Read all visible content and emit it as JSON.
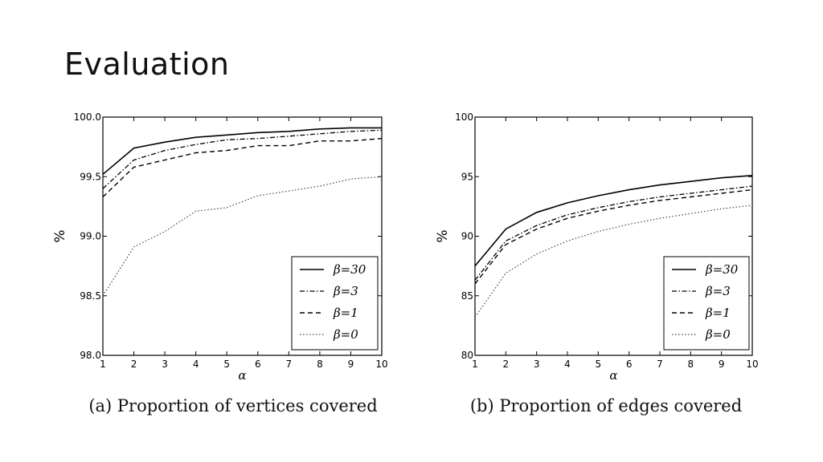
{
  "slide": {
    "title": "Evaluation"
  },
  "chart_data": [
    {
      "type": "line",
      "caption": "(a) Proportion of vertices covered",
      "xlabel": "α",
      "ylabel": "%",
      "x": [
        1,
        2,
        3,
        4,
        5,
        6,
        7,
        8,
        9,
        10
      ],
      "xlim": [
        1,
        10
      ],
      "ylim": [
        98.0,
        100.0
      ],
      "yticks": [
        "98.0",
        "98.5",
        "99.0",
        "99.5",
        "100.0"
      ],
      "yticks_values": [
        98.0,
        98.5,
        99.0,
        99.5,
        100.0
      ],
      "xticks": [
        "1",
        "2",
        "3",
        "4",
        "5",
        "6",
        "7",
        "8",
        "9",
        "10"
      ],
      "legend_position": "lower-right",
      "series": [
        {
          "name": "β=30",
          "style": "solid",
          "values": [
            99.52,
            99.74,
            99.79,
            99.83,
            99.85,
            99.87,
            99.88,
            99.9,
            99.91,
            99.91
          ]
        },
        {
          "name": "β=3",
          "style": "dashdot",
          "values": [
            99.4,
            99.64,
            99.72,
            99.77,
            99.81,
            99.82,
            99.84,
            99.86,
            99.88,
            99.89
          ]
        },
        {
          "name": "β=1",
          "style": "dashed",
          "values": [
            99.33,
            99.58,
            99.64,
            99.7,
            99.72,
            99.76,
            99.76,
            99.8,
            99.8,
            99.82
          ]
        },
        {
          "name": "β=0",
          "style": "dotted",
          "values": [
            98.5,
            98.91,
            99.04,
            99.21,
            99.24,
            99.34,
            99.38,
            99.42,
            99.48,
            99.5
          ]
        }
      ]
    },
    {
      "type": "line",
      "caption": "(b) Proportion of edges covered",
      "xlabel": "α",
      "ylabel": "%",
      "x": [
        1,
        2,
        3,
        4,
        5,
        6,
        7,
        8,
        9,
        10
      ],
      "xlim": [
        1,
        10
      ],
      "ylim": [
        80,
        100
      ],
      "yticks": [
        "80",
        "85",
        "90",
        "95",
        "100"
      ],
      "yticks_values": [
        80,
        85,
        90,
        95,
        100
      ],
      "xticks": [
        "1",
        "2",
        "3",
        "4",
        "5",
        "6",
        "7",
        "8",
        "9",
        "10"
      ],
      "legend_position": "lower-right",
      "series": [
        {
          "name": "β=30",
          "style": "solid",
          "values": [
            87.5,
            90.6,
            92.0,
            92.8,
            93.4,
            93.9,
            94.3,
            94.6,
            94.9,
            95.1
          ]
        },
        {
          "name": "β=3",
          "style": "dashdot",
          "values": [
            86.3,
            89.6,
            90.9,
            91.8,
            92.4,
            92.9,
            93.3,
            93.6,
            93.9,
            94.2
          ]
        },
        {
          "name": "β=1",
          "style": "dashed",
          "values": [
            86.0,
            89.3,
            90.6,
            91.5,
            92.1,
            92.6,
            93.0,
            93.3,
            93.6,
            93.9
          ]
        },
        {
          "name": "β=0",
          "style": "dotted",
          "values": [
            83.2,
            86.9,
            88.5,
            89.6,
            90.4,
            91.0,
            91.5,
            91.9,
            92.3,
            92.6
          ]
        }
      ]
    }
  ]
}
